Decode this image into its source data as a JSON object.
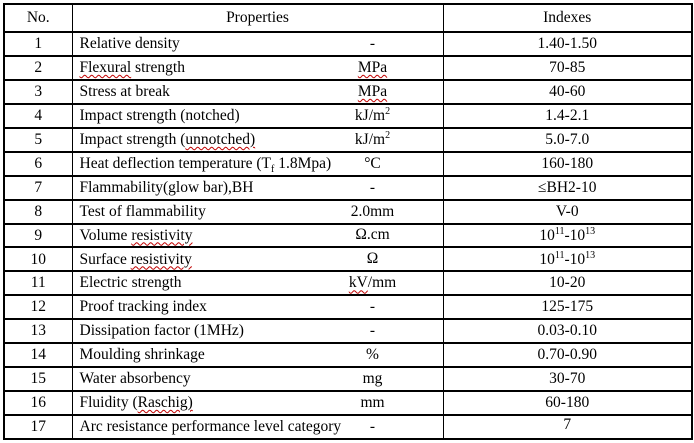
{
  "colors": {
    "background": "#ffffff",
    "text": "#000000",
    "border": "#000000",
    "spellcheck_underline": "#c00000"
  },
  "table": {
    "headers": {
      "no": "No.",
      "properties": "Properties",
      "indexes": "Indexes"
    },
    "rows": [
      {
        "no": "1",
        "property": [
          {
            "t": "Relative density"
          }
        ],
        "unit": [
          {
            "t": "-"
          }
        ],
        "index": [
          {
            "t": "1.40-1.50"
          }
        ]
      },
      {
        "no": "2",
        "property": [
          {
            "t": "Flexural",
            "sq": true
          },
          {
            "t": " strength"
          }
        ],
        "unit": [
          {
            "t": "MPa",
            "sq": true
          }
        ],
        "index": [
          {
            "t": "70-85"
          }
        ]
      },
      {
        "no": "3",
        "property": [
          {
            "t": "Stress at break"
          }
        ],
        "unit": [
          {
            "t": "MPa",
            "sq": true
          }
        ],
        "index": [
          {
            "t": "40-60"
          }
        ]
      },
      {
        "no": "4",
        "property": [
          {
            "t": "Impact strength (notched)"
          }
        ],
        "unit": [
          {
            "t": "kJ/m"
          },
          {
            "t": "2",
            "sup": true
          }
        ],
        "index": [
          {
            "t": "1.4-2.1"
          }
        ]
      },
      {
        "no": "5",
        "property": [
          {
            "t": "Impact strength ("
          },
          {
            "t": "unnotched)",
            "sq": true
          }
        ],
        "unit": [
          {
            "t": "kJ/m"
          },
          {
            "t": "2",
            "sup": true
          }
        ],
        "index": [
          {
            "t": "5.0-7.0"
          }
        ]
      },
      {
        "no": "6",
        "property": [
          {
            "t": "Heat deflection temperature (T"
          },
          {
            "t": "f",
            "sub": true,
            "sq": true
          },
          {
            "t": " 1.8Mpa)"
          }
        ],
        "unit": [
          {
            "t": "°C"
          }
        ],
        "index": [
          {
            "t": "160-180"
          }
        ]
      },
      {
        "no": "7",
        "property": [
          {
            "t": "Flammability(glow bar),BH"
          }
        ],
        "unit": [
          {
            "t": "-"
          }
        ],
        "index": [
          {
            "t": "≤BH2-10"
          }
        ]
      },
      {
        "no": "8",
        "property": [
          {
            "t": "Test of flammability"
          }
        ],
        "unit": [
          {
            "t": "2.0mm"
          }
        ],
        "index": [
          {
            "t": "V-0"
          }
        ]
      },
      {
        "no": "9",
        "property": [
          {
            "t": "Volume "
          },
          {
            "t": "resistivity",
            "sq": true
          }
        ],
        "unit": [
          {
            "t": "Ω.cm"
          }
        ],
        "index": [
          {
            "t": "10"
          },
          {
            "t": "11",
            "sup": true
          },
          {
            "t": "-10"
          },
          {
            "t": "13",
            "sup": true
          }
        ]
      },
      {
        "no": "10",
        "property": [
          {
            "t": "Surface "
          },
          {
            "t": "resistivity",
            "sq": true
          }
        ],
        "unit": [
          {
            "t": "Ω"
          }
        ],
        "index": [
          {
            "t": "10"
          },
          {
            "t": "11",
            "sup": true
          },
          {
            "t": "-10"
          },
          {
            "t": "13",
            "sup": true
          }
        ]
      },
      {
        "no": "11",
        "property": [
          {
            "t": "Electric strength"
          }
        ],
        "unit": [
          {
            "t": "kV",
            "sq": true
          },
          {
            "t": "/mm"
          }
        ],
        "index": [
          {
            "t": "10-20"
          }
        ]
      },
      {
        "no": "12",
        "property": [
          {
            "t": "Proof tracking index"
          }
        ],
        "unit": [
          {
            "t": "-"
          }
        ],
        "index": [
          {
            "t": "125-175"
          }
        ]
      },
      {
        "no": "13",
        "property": [
          {
            "t": "Dissipation factor (1MHz)"
          }
        ],
        "unit": [
          {
            "t": "-"
          }
        ],
        "index": [
          {
            "t": "0.03-0.10"
          }
        ]
      },
      {
        "no": "14",
        "property": [
          {
            "t": "Moulding shrinkage"
          }
        ],
        "unit": [
          {
            "t": "%"
          }
        ],
        "index": [
          {
            "t": "0.70-0.90"
          }
        ]
      },
      {
        "no": "15",
        "property": [
          {
            "t": "Water absorbency"
          }
        ],
        "unit": [
          {
            "t": "mg"
          }
        ],
        "index": [
          {
            "t": "30-70"
          }
        ]
      },
      {
        "no": "16",
        "property": [
          {
            "t": "Fluidity ("
          },
          {
            "t": "Raschig)",
            "sq": true
          }
        ],
        "unit": [
          {
            "t": "mm"
          }
        ],
        "index": [
          {
            "t": "60-180"
          }
        ]
      },
      {
        "no": "17",
        "property": [
          {
            "t": "Arc resistance performance level category"
          }
        ],
        "unit": [
          {
            "t": "-"
          }
        ],
        "index": [
          {
            "t": "7"
          }
        ],
        "index_valign_top": true
      }
    ]
  }
}
